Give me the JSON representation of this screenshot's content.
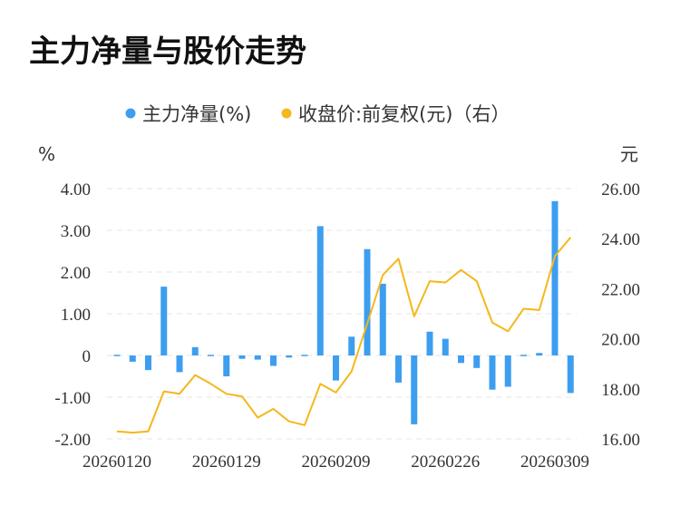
{
  "title": "主力净量与股价走势",
  "legend": [
    {
      "label": "主力净量(%)",
      "color": "#3d9ef0"
    },
    {
      "label": "收盘价:前复权(元)（右）",
      "color": "#f5b71b"
    }
  ],
  "chart_data": {
    "type": "bar+line",
    "left_unit": "%",
    "right_unit": "元",
    "left_axis": {
      "min": -2,
      "max": 4,
      "ticks": [
        "4.00",
        "3.00",
        "2.00",
        "1.00",
        "0",
        "-1.00",
        "-2.00"
      ]
    },
    "right_axis": {
      "min": 16,
      "max": 26,
      "ticks": [
        "26.00",
        "24.00",
        "22.00",
        "20.00",
        "18.00",
        "16.00"
      ]
    },
    "x_tick_labels": [
      {
        "index": 0,
        "label": "20260120"
      },
      {
        "index": 7,
        "label": "20260129"
      },
      {
        "index": 14,
        "label": "20260209"
      },
      {
        "index": 21,
        "label": "20260226"
      },
      {
        "index": 28,
        "label": "20260309"
      }
    ],
    "bar_series": {
      "name": "主力净量(%)",
      "color": "#3d9ef0",
      "values": [
        -0.03,
        -0.15,
        -0.35,
        1.65,
        -0.4,
        0.2,
        0.03,
        -0.5,
        -0.08,
        -0.1,
        -0.25,
        -0.05,
        0.0,
        3.1,
        -0.6,
        0.45,
        2.55,
        1.72,
        -0.65,
        -1.65,
        0.57,
        0.4,
        -0.18,
        -0.3,
        -0.82,
        -0.75,
        0.03,
        0.06,
        3.7,
        -0.9
      ]
    },
    "line_series": {
      "name": "收盘价:前复权(元)（右）",
      "color": "#f5b71b",
      "values": [
        16.3,
        16.25,
        16.3,
        17.9,
        17.8,
        18.55,
        18.2,
        17.8,
        17.7,
        16.85,
        17.2,
        16.7,
        16.55,
        18.2,
        17.85,
        18.7,
        20.6,
        22.55,
        23.2,
        20.9,
        22.3,
        22.25,
        22.75,
        22.3,
        20.65,
        20.3,
        21.2,
        21.15,
        23.3,
        24.05
      ]
    }
  }
}
